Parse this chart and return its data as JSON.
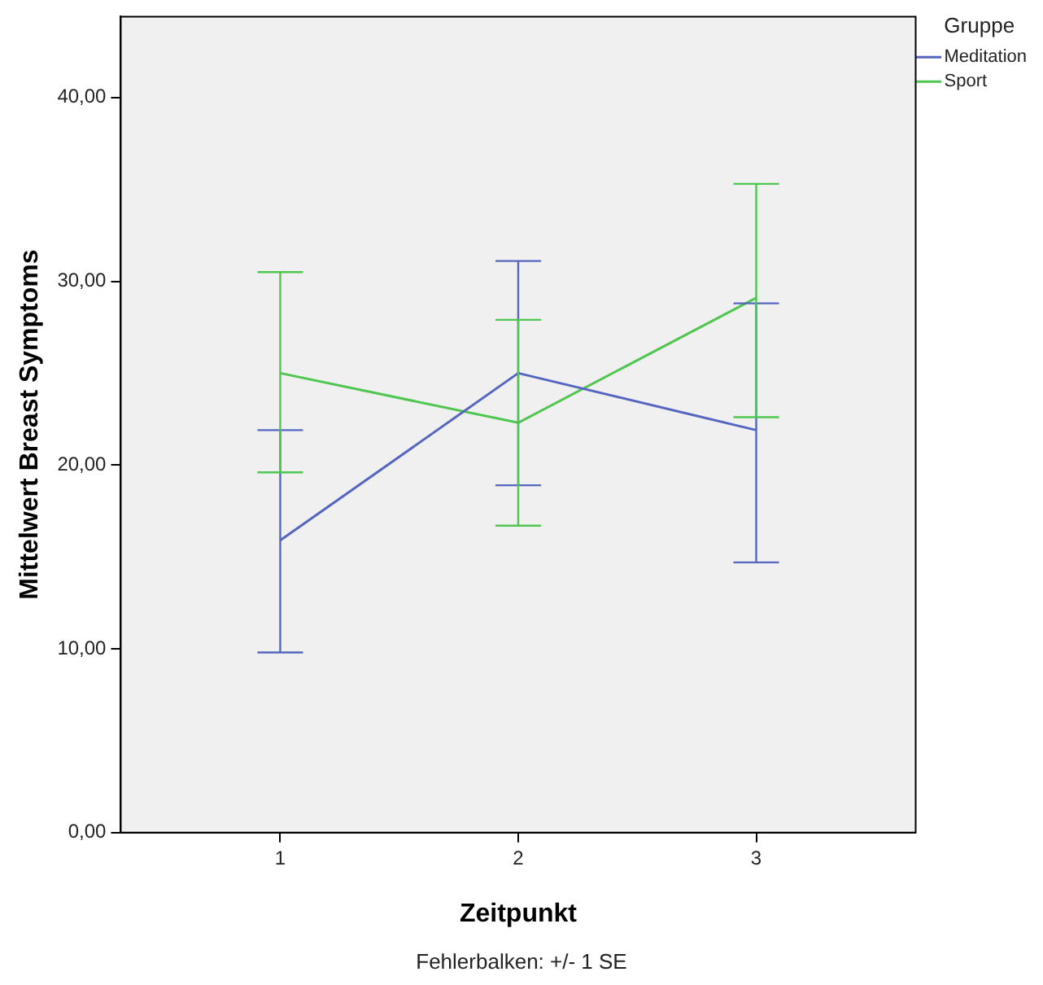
{
  "chart_data": {
    "type": "line",
    "xlabel": "Zeitpunkt",
    "ylabel": "Mittelwert Breast Symptoms",
    "legend_title": "Gruppe",
    "legend": "top right",
    "grid": false,
    "marker": "none",
    "line_style": "solid",
    "x": [
      1,
      2,
      3
    ],
    "xlim": [
      0.33,
      3.67
    ],
    "xticks": [
      1,
      2,
      3
    ],
    "ylim": [
      0,
      44.4
    ],
    "yticks": [
      {
        "value": 0,
        "label": "0,00"
      },
      {
        "value": 10,
        "label": "10,00"
      },
      {
        "value": 20,
        "label": "20,00"
      },
      {
        "value": 30,
        "label": "30,00"
      },
      {
        "value": 40,
        "label": "40,00"
      }
    ],
    "series": [
      {
        "name": "Meditation",
        "color": "#5566c0",
        "values": [
          15.9,
          25.0,
          21.9
        ],
        "errors": [
          [
            9.8,
            21.9
          ],
          [
            18.9,
            31.1
          ],
          [
            14.7,
            28.8
          ]
        ]
      },
      {
        "name": "Sport",
        "color": "#4fc64f",
        "values": [
          25.0,
          22.3,
          29.1
        ],
        "errors": [
          [
            19.6,
            30.5
          ],
          [
            16.7,
            27.9
          ],
          [
            22.6,
            35.3
          ]
        ]
      }
    ],
    "annotations": [
      "Fehlerbalken: +/- 1 SE"
    ]
  }
}
